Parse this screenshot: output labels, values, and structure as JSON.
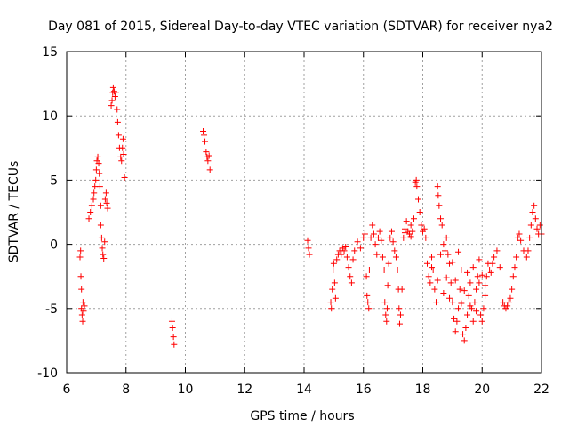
{
  "chart_data": {
    "type": "scatter",
    "title": "Day 081 of 2015, Sidereal Day-to-day VTEC variation (SDTVAR) for receiver nya2",
    "xlabel": "GPS time / hours",
    "ylabel": "SDTVAR / TECUs",
    "xlim": [
      6,
      22
    ],
    "ylim": [
      -10,
      15
    ],
    "xticks": [
      6,
      8,
      10,
      12,
      14,
      16,
      18,
      20,
      22
    ],
    "yticks": [
      -10,
      -5,
      0,
      5,
      10,
      15
    ],
    "grid": true,
    "marker": "+",
    "color": "#ff0000",
    "series": [
      {
        "name": "SDTVAR",
        "points": [
          [
            6.45,
            -1.0
          ],
          [
            6.47,
            -0.5
          ],
          [
            6.48,
            -2.5
          ],
          [
            6.5,
            -3.5
          ],
          [
            6.5,
            -5.0
          ],
          [
            6.52,
            -5.5
          ],
          [
            6.54,
            -6.0
          ],
          [
            6.55,
            -4.5
          ],
          [
            6.57,
            -5.2
          ],
          [
            6.6,
            -4.8
          ],
          [
            6.75,
            2.0
          ],
          [
            6.8,
            2.5
          ],
          [
            6.85,
            3.0
          ],
          [
            6.9,
            3.5
          ],
          [
            6.92,
            4.0
          ],
          [
            6.95,
            4.5
          ],
          [
            6.98,
            5.0
          ],
          [
            7.0,
            5.8
          ],
          [
            7.02,
            6.5
          ],
          [
            7.05,
            6.8
          ],
          [
            7.08,
            6.3
          ],
          [
            7.1,
            5.5
          ],
          [
            7.12,
            4.5
          ],
          [
            7.15,
            3.0
          ],
          [
            7.15,
            1.5
          ],
          [
            7.18,
            0.5
          ],
          [
            7.2,
            -0.3
          ],
          [
            7.22,
            -0.8
          ],
          [
            7.25,
            -1.1
          ],
          [
            7.28,
            0.2
          ],
          [
            7.3,
            3.5
          ],
          [
            7.33,
            4.0
          ],
          [
            7.35,
            3.2
          ],
          [
            7.38,
            2.8
          ],
          [
            7.5,
            10.8
          ],
          [
            7.53,
            11.2
          ],
          [
            7.55,
            11.8
          ],
          [
            7.57,
            12.2
          ],
          [
            7.6,
            11.9
          ],
          [
            7.63,
            11.5
          ],
          [
            7.66,
            11.8
          ],
          [
            7.7,
            10.5
          ],
          [
            7.72,
            9.5
          ],
          [
            7.75,
            8.5
          ],
          [
            7.78,
            7.5
          ],
          [
            7.82,
            6.8
          ],
          [
            7.85,
            6.5
          ],
          [
            7.88,
            7.5
          ],
          [
            7.9,
            8.2
          ],
          [
            7.92,
            7.0
          ],
          [
            7.95,
            5.2
          ],
          [
            9.55,
            -6.0
          ],
          [
            9.57,
            -6.5
          ],
          [
            9.6,
            -7.2
          ],
          [
            9.62,
            -7.8
          ],
          [
            10.6,
            8.8
          ],
          [
            10.63,
            8.5
          ],
          [
            10.66,
            8.0
          ],
          [
            10.7,
            7.2
          ],
          [
            10.73,
            6.8
          ],
          [
            10.76,
            6.5
          ],
          [
            10.8,
            6.9
          ],
          [
            10.83,
            5.8
          ],
          [
            14.12,
            0.3
          ],
          [
            14.15,
            -0.3
          ],
          [
            14.18,
            -0.8
          ],
          [
            14.9,
            -4.5
          ],
          [
            14.92,
            -5.0
          ],
          [
            14.95,
            -3.5
          ],
          [
            14.98,
            -2.0
          ],
          [
            15.0,
            -1.5
          ],
          [
            15.03,
            -3.0
          ],
          [
            15.06,
            -4.2
          ],
          [
            15.1,
            -1.2
          ],
          [
            15.15,
            -0.8
          ],
          [
            15.2,
            -0.5
          ],
          [
            15.25,
            -0.8
          ],
          [
            15.3,
            -0.3
          ],
          [
            15.35,
            -0.5
          ],
          [
            15.4,
            -0.2
          ],
          [
            15.45,
            -1.0
          ],
          [
            15.5,
            -1.8
          ],
          [
            15.55,
            -2.5
          ],
          [
            15.6,
            -3.0
          ],
          [
            15.65,
            -1.2
          ],
          [
            15.7,
            -0.5
          ],
          [
            15.8,
            0.2
          ],
          [
            15.9,
            -0.3
          ],
          [
            16.0,
            0.5
          ],
          [
            16.05,
            0.8
          ],
          [
            16.1,
            -2.5
          ],
          [
            16.12,
            -4.0
          ],
          [
            16.15,
            -4.5
          ],
          [
            16.18,
            -5.0
          ],
          [
            16.2,
            -2.0
          ],
          [
            16.25,
            0.5
          ],
          [
            16.3,
            1.5
          ],
          [
            16.35,
            0.8
          ],
          [
            16.4,
            0.0
          ],
          [
            16.45,
            -0.8
          ],
          [
            16.5,
            0.5
          ],
          [
            16.55,
            1.0
          ],
          [
            16.6,
            0.3
          ],
          [
            16.65,
            -1.0
          ],
          [
            16.7,
            -2.0
          ],
          [
            16.72,
            -4.5
          ],
          [
            16.75,
            -5.5
          ],
          [
            16.78,
            -6.0
          ],
          [
            16.8,
            -5.0
          ],
          [
            16.82,
            -3.2
          ],
          [
            16.85,
            -1.5
          ],
          [
            16.9,
            0.5
          ],
          [
            16.95,
            1.0
          ],
          [
            17.0,
            0.2
          ],
          [
            17.05,
            -0.5
          ],
          [
            17.1,
            -1.0
          ],
          [
            17.15,
            -2.0
          ],
          [
            17.18,
            -3.5
          ],
          [
            17.2,
            -5.0
          ],
          [
            17.22,
            -6.2
          ],
          [
            17.25,
            -5.5
          ],
          [
            17.3,
            -3.5
          ],
          [
            17.35,
            0.5
          ],
          [
            17.4,
            1.2
          ],
          [
            17.45,
            1.8
          ],
          [
            17.5,
            1.0
          ],
          [
            17.55,
            0.8
          ],
          [
            17.6,
            1.5
          ],
          [
            17.65,
            1.0
          ],
          [
            17.7,
            2.0
          ],
          [
            17.75,
            4.8
          ],
          [
            17.78,
            5.0
          ],
          [
            17.8,
            4.5
          ],
          [
            17.85,
            3.5
          ],
          [
            17.9,
            2.5
          ],
          [
            17.95,
            1.5
          ],
          [
            18.0,
            1.0
          ],
          [
            18.05,
            1.2
          ],
          [
            18.1,
            0.5
          ],
          [
            18.15,
            -1.5
          ],
          [
            18.2,
            -2.5
          ],
          [
            18.25,
            -3.0
          ],
          [
            18.3,
            -1.0
          ],
          [
            18.35,
            -2.0
          ],
          [
            18.4,
            -3.5
          ],
          [
            18.45,
            -4.5
          ],
          [
            18.5,
            4.5
          ],
          [
            18.52,
            3.8
          ],
          [
            18.55,
            3.0
          ],
          [
            18.6,
            2.0
          ],
          [
            18.65,
            1.5
          ],
          [
            18.7,
            0.0
          ],
          [
            18.75,
            -0.5
          ],
          [
            18.8,
            0.5
          ],
          [
            18.85,
            -0.8
          ],
          [
            18.9,
            -1.5
          ],
          [
            18.95,
            -3.0
          ],
          [
            19.0,
            -4.5
          ],
          [
            19.05,
            -5.8
          ],
          [
            19.1,
            -6.8
          ],
          [
            19.15,
            -6.0
          ],
          [
            19.2,
            -5.0
          ],
          [
            19.25,
            -3.5
          ],
          [
            19.3,
            -2.0
          ],
          [
            19.35,
            -7.0
          ],
          [
            19.4,
            -7.5
          ],
          [
            19.45,
            -6.5
          ],
          [
            19.5,
            -5.5
          ],
          [
            19.55,
            -4.0
          ],
          [
            19.6,
            -3.0
          ],
          [
            19.65,
            -5.0
          ],
          [
            19.7,
            -6.0
          ],
          [
            19.75,
            -4.5
          ],
          [
            19.8,
            -3.5
          ],
          [
            19.85,
            -2.5
          ],
          [
            19.9,
            -3.0
          ],
          [
            19.95,
            -5.5
          ],
          [
            20.0,
            -6.0
          ],
          [
            20.05,
            -5.0
          ],
          [
            20.1,
            -4.0
          ],
          [
            20.15,
            -2.5
          ],
          [
            20.2,
            -1.5
          ],
          [
            20.25,
            -2.0
          ],
          [
            20.3,
            -2.2
          ],
          [
            20.35,
            -1.5
          ],
          [
            20.4,
            -1.0
          ],
          [
            20.5,
            -0.5
          ],
          [
            20.6,
            -1.8
          ],
          [
            20.7,
            -4.5
          ],
          [
            20.75,
            -4.8
          ],
          [
            20.8,
            -5.0
          ],
          [
            20.85,
            -4.8
          ],
          [
            20.9,
            -4.5
          ],
          [
            20.95,
            -4.2
          ],
          [
            21.0,
            -3.5
          ],
          [
            21.05,
            -2.5
          ],
          [
            21.1,
            -1.8
          ],
          [
            21.15,
            -1.0
          ],
          [
            21.2,
            0.5
          ],
          [
            21.25,
            0.8
          ],
          [
            21.3,
            0.3
          ],
          [
            21.4,
            -0.5
          ],
          [
            21.5,
            -1.0
          ],
          [
            21.55,
            -0.5
          ],
          [
            21.6,
            0.5
          ],
          [
            21.65,
            1.5
          ],
          [
            21.7,
            2.5
          ],
          [
            21.75,
            3.0
          ],
          [
            21.8,
            2.0
          ],
          [
            21.85,
            1.2
          ],
          [
            21.9,
            0.8
          ],
          [
            21.95,
            1.5
          ],
          [
            22.0,
            0.8
          ],
          [
            18.3,
            -1.8
          ],
          [
            18.5,
            -2.8
          ],
          [
            18.7,
            -3.8
          ],
          [
            18.9,
            -4.2
          ],
          [
            19.1,
            -2.8
          ],
          [
            19.3,
            -4.6
          ],
          [
            19.5,
            -2.2
          ],
          [
            19.7,
            -1.8
          ],
          [
            19.9,
            -1.2
          ],
          [
            20.1,
            -3.2
          ],
          [
            18.6,
            -0.8
          ],
          [
            18.8,
            -2.6
          ],
          [
            19.0,
            -1.4
          ],
          [
            19.2,
            -0.6
          ],
          [
            19.4,
            -3.6
          ],
          [
            19.6,
            -4.8
          ],
          [
            19.8,
            -5.2
          ],
          [
            20.0,
            -2.4
          ],
          [
            17.6,
            0.6
          ],
          [
            17.4,
            0.9
          ]
        ]
      }
    ]
  }
}
